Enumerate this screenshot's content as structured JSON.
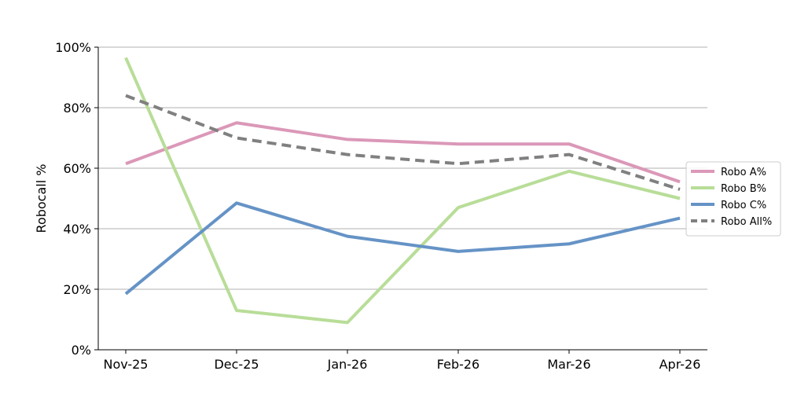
{
  "chart_data": {
    "type": "line",
    "title": "",
    "xlabel": "",
    "ylabel": "Robocall %",
    "categories": [
      "Nov-25",
      "Dec-25",
      "Jan-26",
      "Feb-26",
      "Mar-26",
      "Apr-26"
    ],
    "ylim": [
      0,
      100
    ],
    "yticks": [
      0,
      20,
      40,
      60,
      80,
      100
    ],
    "ytick_labels": [
      "0%",
      "20%",
      "40%",
      "60%",
      "80%",
      "100%"
    ],
    "grid": "horizontal",
    "legend_position": "right",
    "series": [
      {
        "name": "Robo A%",
        "values": [
          61.5,
          75.0,
          69.5,
          68.0,
          68.0,
          55.5
        ],
        "color": "#db98b8",
        "dashed": false
      },
      {
        "name": "Robo B%",
        "values": [
          96.5,
          13.0,
          9.0,
          47.0,
          59.0,
          50.0
        ],
        "color": "#b8dd98",
        "dashed": false
      },
      {
        "name": "Robo C%",
        "values": [
          18.5,
          48.5,
          37.5,
          32.5,
          35.0,
          43.5
        ],
        "color": "#6593c6",
        "dashed": false
      },
      {
        "name": "Robo All%",
        "values": [
          84.0,
          70.0,
          64.5,
          61.5,
          64.5,
          53.0
        ],
        "color": "#808080",
        "dashed": true
      }
    ]
  }
}
